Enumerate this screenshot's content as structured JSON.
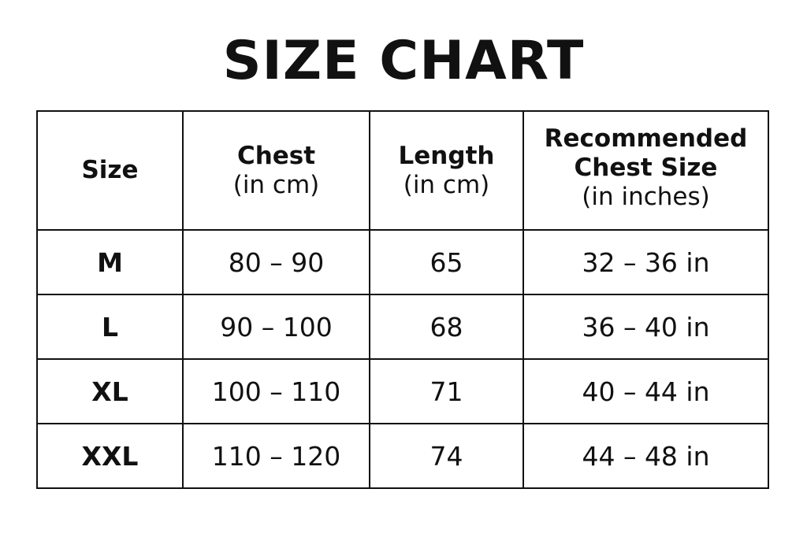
{
  "title": "SIZE CHART",
  "table": {
    "headers": [
      {
        "line1": "Size",
        "line2": "",
        "line3": ""
      },
      {
        "line1": "Chest",
        "line2": "(in cm)",
        "line3": ""
      },
      {
        "line1": "Length",
        "line2": "(in cm)",
        "line3": ""
      },
      {
        "line1": "Recommended",
        "line2": "Chest Size",
        "line3": "(in inches)"
      }
    ],
    "rows": [
      {
        "size": "M",
        "chest": "80 – 90",
        "length": "65",
        "recommended": "32 – 36 in"
      },
      {
        "size": "L",
        "chest": "90 – 100",
        "length": "68",
        "recommended": "36 – 40 in"
      },
      {
        "size": "XL",
        "chest": "100 – 110",
        "length": "71",
        "recommended": "40 – 44 in"
      },
      {
        "size": "XXL",
        "chest": "110 – 120",
        "length": "74",
        "recommended": "44 – 48 in"
      }
    ]
  }
}
